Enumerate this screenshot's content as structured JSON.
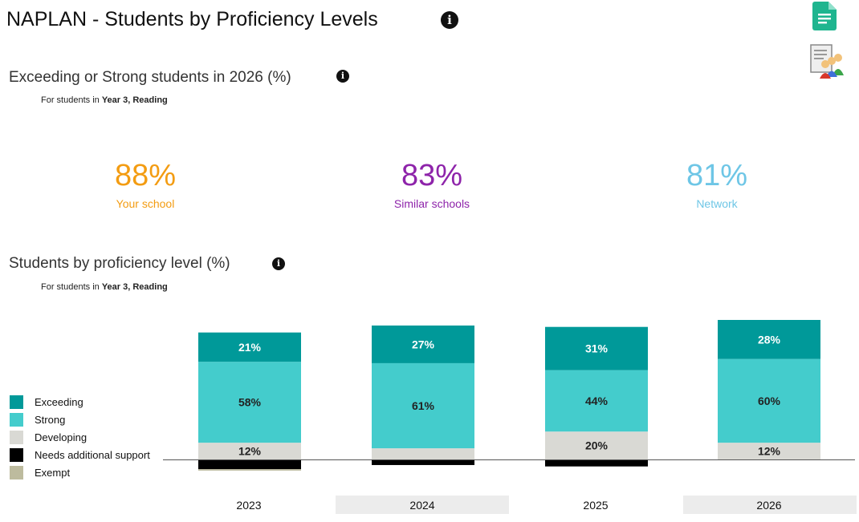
{
  "header": {
    "title": "NAPLAN - Students by Proficiency Levels",
    "info_glyph": "i"
  },
  "summary": {
    "heading": "Exceeding or Strong students in 2026 (%)",
    "filter_prefix": "For students in ",
    "filter_value": "Year 3, Reading",
    "kpis": [
      {
        "value": "88%",
        "label": "Your school",
        "color": "#F39C12"
      },
      {
        "value": "83%",
        "label": "Similar schools",
        "color": "#8E24AA"
      },
      {
        "value": "81%",
        "label": "Network",
        "color": "#6EC6E6"
      }
    ]
  },
  "chart_section": {
    "heading": "Students by proficiency level (%)",
    "filter_prefix": "For students in ",
    "filter_value": "Year 3, Reading"
  },
  "chart_data": {
    "type": "bar",
    "stacked": true,
    "baseline_series": "Needs additional support",
    "categories": [
      "2023",
      "2024",
      "2025",
      "2026"
    ],
    "series": [
      {
        "name": "Exceeding",
        "color": "#009999",
        "values": [
          21,
          27,
          31,
          28
        ],
        "labels": [
          "21%",
          "27%",
          "31%",
          "28%"
        ]
      },
      {
        "name": "Strong",
        "color": "#44CCCC",
        "values": [
          58,
          61,
          44,
          60
        ],
        "labels": [
          "58%",
          "61%",
          "44%",
          "60%"
        ]
      },
      {
        "name": "Developing",
        "color": "#D9D9D4",
        "values": [
          12,
          8,
          20,
          12
        ],
        "labels": [
          "12%",
          "",
          "20%",
          "12%"
        ]
      },
      {
        "name": "Needs additional support",
        "color": "#000000",
        "values": [
          7,
          4,
          5,
          0
        ],
        "labels": [
          "",
          "",
          "",
          ""
        ]
      },
      {
        "name": "Exempt",
        "color": "#BDBB9E",
        "values": [
          1,
          0,
          0,
          0
        ],
        "labels": [
          "",
          "",
          "",
          ""
        ]
      }
    ],
    "legend_position": "left",
    "icons": [
      "document-icon",
      "students-report-icon",
      "info-icon"
    ]
  }
}
